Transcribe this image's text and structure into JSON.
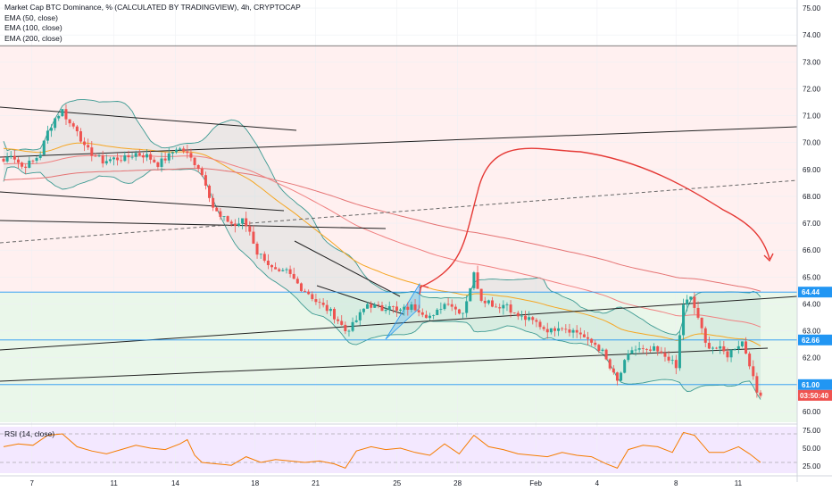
{
  "legend": {
    "title": "Market Cap BTC Dominance, % (CALCULATED BY TRADINGVIEW), 4h, CRYPTOCAP",
    "indicators": [
      "EMA (50, close)",
      "EMA (100, close)",
      "EMA (200, close)"
    ]
  },
  "rsi_label": "RSI (14, close)",
  "colors": {
    "up": "#26a69a",
    "down": "#ef5350",
    "ema50": "#f5a623",
    "ema100": "#f08080",
    "ema200": "#e57373",
    "bb": "#3d9a92",
    "rsi": "#f57c00",
    "zone_top": "#fff0f0",
    "zone_bottom": "#eaf7ea",
    "level": "#2196f3",
    "price_badge": "#ef5350",
    "arrow": "#e53935"
  },
  "chart_data": {
    "type": "candlestick",
    "price_axis": {
      "min": 59.6,
      "max": 75.3,
      "ticks": [
        "75.00",
        "74.00",
        "73.00",
        "72.00",
        "71.00",
        "70.00",
        "69.00",
        "68.00",
        "67.00",
        "66.00",
        "65.00",
        "64.00",
        "63.00",
        "62.00",
        "61.00",
        "60.00"
      ]
    },
    "rsi_axis": {
      "min": 15,
      "max": 80,
      "ticks": [
        "75.00",
        "50.00",
        "25.00"
      ]
    },
    "x_labels": [
      {
        "label": "7",
        "pos": 0.04
      },
      {
        "label": "11",
        "pos": 0.143
      },
      {
        "label": "14",
        "pos": 0.22
      },
      {
        "label": "18",
        "pos": 0.32
      },
      {
        "label": "21",
        "pos": 0.396
      },
      {
        "label": "25",
        "pos": 0.498
      },
      {
        "label": "28",
        "pos": 0.574
      },
      {
        "label": "Feb",
        "pos": 0.672
      },
      {
        "label": "4",
        "pos": 0.749
      },
      {
        "label": "8",
        "pos": 0.848
      },
      {
        "label": "11",
        "pos": 0.926
      }
    ],
    "price_badges": [
      {
        "label": "64.44",
        "value": 64.44,
        "color": "#2196f3"
      },
      {
        "label": "62.66",
        "value": 62.66,
        "color": "#2196f3"
      },
      {
        "label": "61.00",
        "value": 61.0,
        "color": "#2196f3"
      }
    ],
    "last_price_badge": {
      "label": "03:50:40",
      "value": 60.6
    },
    "close_path": [
      [
        0,
        69.3
      ],
      [
        2,
        69.6
      ],
      [
        5,
        69.1
      ],
      [
        8,
        69.3
      ],
      [
        10,
        69.6
      ],
      [
        12,
        70.4
      ],
      [
        14,
        70.9
      ],
      [
        16,
        71.2
      ],
      [
        18,
        70.7
      ],
      [
        20,
        70.5
      ],
      [
        22,
        69.8
      ],
      [
        25,
        69.5
      ],
      [
        27,
        69.3
      ],
      [
        30,
        69.4
      ],
      [
        33,
        69.4
      ],
      [
        36,
        69.6
      ],
      [
        39,
        69.5
      ],
      [
        42,
        69.2
      ],
      [
        45,
        69.5
      ],
      [
        47,
        69.8
      ],
      [
        49,
        69.7
      ],
      [
        51,
        69.4
      ],
      [
        53,
        69.1
      ],
      [
        55,
        68.5
      ],
      [
        57,
        67.6
      ],
      [
        59,
        67.2
      ],
      [
        61,
        67.1
      ],
      [
        63,
        66.9
      ],
      [
        65,
        67.1
      ],
      [
        67,
        66.7
      ],
      [
        69,
        65.9
      ],
      [
        71,
        65.7
      ],
      [
        73,
        65.3
      ],
      [
        75,
        65.1
      ],
      [
        77,
        65.2
      ],
      [
        79,
        64.9
      ],
      [
        81,
        64.6
      ],
      [
        83,
        64.4
      ],
      [
        85,
        64.1
      ],
      [
        87,
        63.9
      ],
      [
        89,
        63.7
      ],
      [
        91,
        63.4
      ],
      [
        93,
        63.0
      ],
      [
        95,
        63.2
      ],
      [
        97,
        63.6
      ],
      [
        99,
        64.0
      ],
      [
        101,
        63.9
      ],
      [
        103,
        63.8
      ],
      [
        105,
        64.0
      ],
      [
        107,
        63.7
      ],
      [
        109,
        63.8
      ],
      [
        111,
        63.9
      ],
      [
        113,
        63.8
      ],
      [
        115,
        63.6
      ],
      [
        117,
        63.5
      ],
      [
        119,
        63.9
      ],
      [
        121,
        64.1
      ],
      [
        123,
        63.8
      ],
      [
        125,
        63.7
      ],
      [
        128,
        65.1
      ],
      [
        130,
        64.2
      ],
      [
        132,
        64.1
      ],
      [
        134,
        63.9
      ],
      [
        137,
        64.0
      ],
      [
        139,
        63.6
      ],
      [
        141,
        63.5
      ],
      [
        143,
        63.4
      ],
      [
        145,
        63.3
      ],
      [
        147,
        63.1
      ],
      [
        149,
        63.0
      ],
      [
        151,
        63.2
      ],
      [
        153,
        63.1
      ],
      [
        155,
        63.0
      ],
      [
        157,
        62.9
      ],
      [
        159,
        62.6
      ],
      [
        161,
        62.5
      ],
      [
        163,
        62.2
      ],
      [
        165,
        61.6
      ],
      [
        167,
        61.1
      ],
      [
        169,
        61.8
      ],
      [
        171,
        62.3
      ],
      [
        173,
        62.3
      ],
      [
        175,
        62.2
      ],
      [
        177,
        62.3
      ],
      [
        179,
        62.1
      ],
      [
        181,
        62.0
      ],
      [
        183,
        61.6
      ],
      [
        185,
        64.0
      ],
      [
        187,
        64.2
      ],
      [
        189,
        63.5
      ],
      [
        191,
        62.5
      ],
      [
        193,
        62.4
      ],
      [
        195,
        62.3
      ],
      [
        197,
        62.1
      ],
      [
        199,
        62.4
      ],
      [
        201,
        62.6
      ],
      [
        203,
        61.8
      ],
      [
        204,
        61.2
      ],
      [
        205,
        60.7
      ]
    ],
    "rsi_path": [
      [
        0,
        52
      ],
      [
        4,
        56
      ],
      [
        8,
        54
      ],
      [
        12,
        68
      ],
      [
        16,
        70
      ],
      [
        20,
        52
      ],
      [
        24,
        46
      ],
      [
        28,
        42
      ],
      [
        32,
        48
      ],
      [
        36,
        54
      ],
      [
        40,
        50
      ],
      [
        44,
        48
      ],
      [
        48,
        56
      ],
      [
        50,
        62
      ],
      [
        52,
        40
      ],
      [
        54,
        30
      ],
      [
        58,
        28
      ],
      [
        62,
        26
      ],
      [
        66,
        38
      ],
      [
        70,
        30
      ],
      [
        74,
        34
      ],
      [
        78,
        32
      ],
      [
        82,
        30
      ],
      [
        86,
        32
      ],
      [
        90,
        28
      ],
      [
        93,
        22
      ],
      [
        96,
        46
      ],
      [
        100,
        52
      ],
      [
        104,
        48
      ],
      [
        108,
        50
      ],
      [
        112,
        44
      ],
      [
        116,
        40
      ],
      [
        120,
        56
      ],
      [
        124,
        42
      ],
      [
        128,
        68
      ],
      [
        132,
        52
      ],
      [
        136,
        48
      ],
      [
        140,
        42
      ],
      [
        144,
        40
      ],
      [
        148,
        38
      ],
      [
        152,
        44
      ],
      [
        156,
        40
      ],
      [
        160,
        38
      ],
      [
        164,
        28
      ],
      [
        167,
        22
      ],
      [
        170,
        48
      ],
      [
        174,
        54
      ],
      [
        178,
        52
      ],
      [
        182,
        44
      ],
      [
        185,
        72
      ],
      [
        188,
        68
      ],
      [
        192,
        44
      ],
      [
        196,
        44
      ],
      [
        200,
        52
      ],
      [
        203,
        42
      ],
      [
        206,
        30
      ]
    ]
  }
}
